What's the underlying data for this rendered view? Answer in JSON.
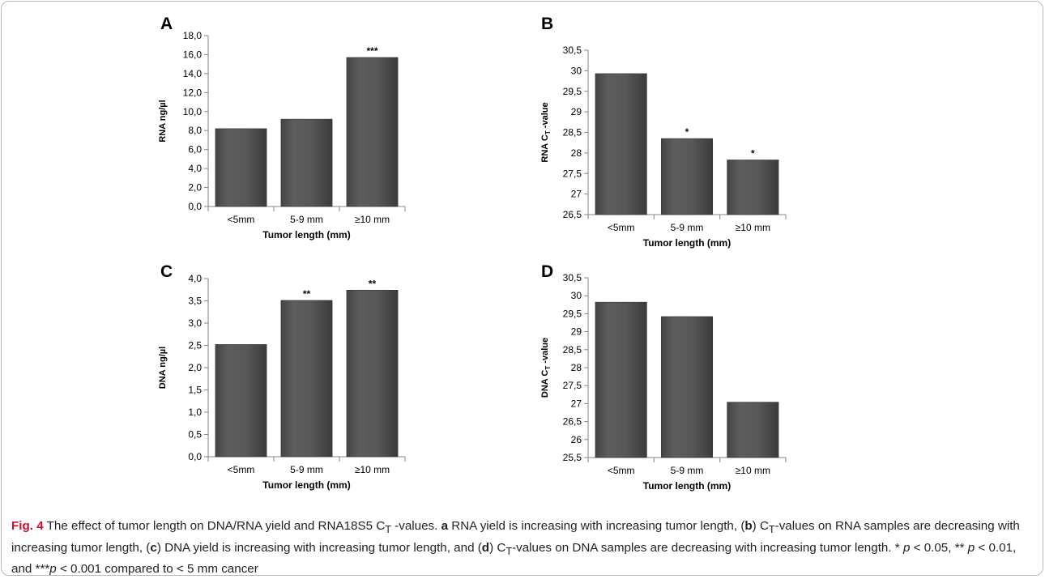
{
  "panels": [
    {
      "label": "A"
    },
    {
      "label": "B"
    },
    {
      "label": "C"
    },
    {
      "label": "D"
    }
  ],
  "chart_data": [
    {
      "type": "bar",
      "panel": "A",
      "categories": [
        "<5mm",
        "5-9 mm",
        "≥10 mm"
      ],
      "values": [
        8.2,
        9.2,
        15.7
      ],
      "significance": [
        "",
        "",
        "***"
      ],
      "xlabel": "Tumor length (mm)",
      "ylabel": "RNA ng/µl",
      "ylim": [
        0,
        18
      ],
      "yticks": [
        "0,0",
        "2,0",
        "4,0",
        "6,0",
        "8,0",
        "10,0",
        "12,0",
        "14,0",
        "16,0",
        "18,0"
      ],
      "bar_color": "#555555",
      "grid": false
    },
    {
      "type": "bar",
      "panel": "B",
      "categories": [
        "<5mm",
        "5-9 mm",
        "≥10 mm"
      ],
      "values": [
        29.93,
        28.35,
        27.83
      ],
      "significance": [
        "",
        "*",
        "*"
      ],
      "xlabel": "Tumor length (mm)",
      "ylabel": "RNA C",
      "ylabel_subscript": "T",
      "ylabel_suffix": "-value",
      "ylim": [
        26.5,
        30.5
      ],
      "yticks": [
        "26,5",
        "27",
        "27,5",
        "28",
        "28,5",
        "29",
        "29,5",
        "30",
        "30,5"
      ],
      "bar_color": "#555555",
      "grid": false
    },
    {
      "type": "bar",
      "panel": "C",
      "categories": [
        "<5mm",
        "5-9 mm",
        "≥10 mm"
      ],
      "values": [
        2.52,
        3.51,
        3.74
      ],
      "significance": [
        "",
        "**",
        "**"
      ],
      "xlabel": "Tumor length (mm)",
      "ylabel": "DNA ng/µl",
      "ylim": [
        0,
        4
      ],
      "yticks": [
        "0,0",
        "0,5",
        "1,0",
        "1,5",
        "2,0",
        "2,5",
        "3,0",
        "3,5",
        "4,0"
      ],
      "bar_color": "#555555",
      "grid": false
    },
    {
      "type": "bar",
      "panel": "D",
      "categories": [
        "<5mm",
        "5-9 mm",
        "≥10 mm"
      ],
      "values": [
        29.82,
        29.42,
        27.04
      ],
      "significance": [
        "",
        "",
        ""
      ],
      "xlabel": "Tumor length (mm)",
      "ylabel": "DNA C",
      "ylabel_subscript": "T",
      "ylabel_suffix": "-value",
      "ylim": [
        25.5,
        30.5
      ],
      "yticks": [
        "25,5",
        "26",
        "26,5",
        "27",
        "27,5",
        "28",
        "28,5",
        "29",
        "29,5",
        "30",
        "30,5"
      ],
      "bar_color": "#555555",
      "grid": false
    }
  ],
  "caption": {
    "fig_label": "Fig. 4",
    "t1": " The effect of tumor length on DNA/RNA yield and RNA18S5 C",
    "s1": "T",
    "t2": " -values. ",
    "a": "a",
    "t3": " RNA yield is increasing with increasing tumor length, (",
    "b": "b",
    "t4": ") C",
    "s2": "T",
    "t5": "-values on RNA samples are decreasing with increasing tumor length, (",
    "c": "c",
    "t6": ") DNA yield is increasing with increasing tumor length, and (",
    "d": "d",
    "t7": ") C",
    "s3": "T",
    "t8": "-values on DNA samples are decreasing with increasing tumor length. * ",
    "p1": "p",
    "t9": " < 0.05, ** ",
    "p2": "p",
    "t10": " < 0.01, and ***",
    "p3": "p",
    "t11": " < 0.001 compared to < 5 mm cancer"
  }
}
